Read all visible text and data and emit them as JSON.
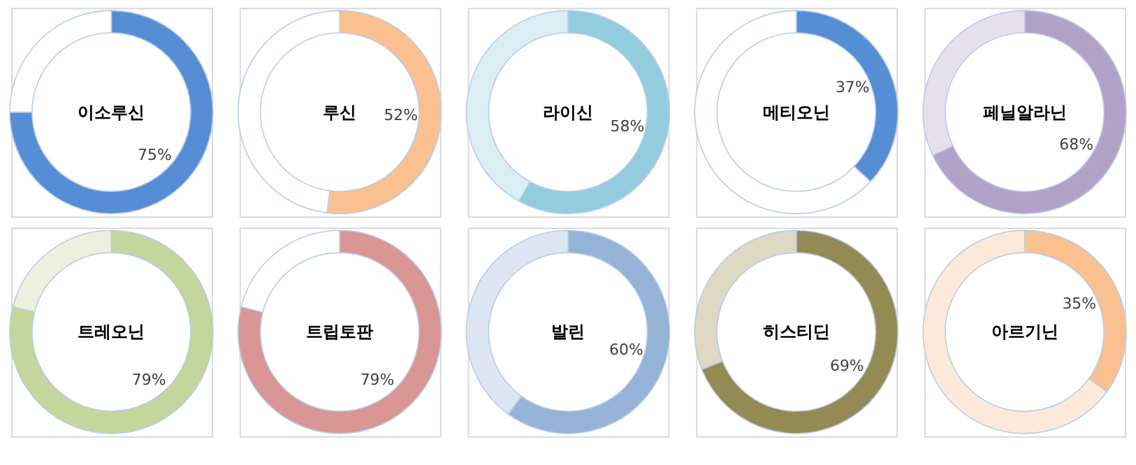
{
  "chart_data": [
    {
      "type": "donut",
      "title": "이소루신",
      "categories": [
        null,
        null
      ],
      "values": [
        75,
        25
      ],
      "colors": [
        "#558ed5",
        "#ffffff"
      ],
      "value_labels": [
        "75%",
        null
      ]
    },
    {
      "type": "donut",
      "title": "루신",
      "categories": [
        null,
        null
      ],
      "values": [
        52,
        48
      ],
      "colors": [
        "#fac090",
        "#ffffff"
      ],
      "value_labels": [
        "52%",
        null
      ]
    },
    {
      "type": "donut",
      "title": "라이신",
      "categories": [
        null,
        null
      ],
      "values": [
        58,
        42
      ],
      "colors": [
        "#93cddd",
        "#dbeef4"
      ],
      "value_labels": [
        "58%",
        null
      ]
    },
    {
      "type": "donut",
      "title": "메티오닌",
      "categories": [
        null,
        null
      ],
      "values": [
        37,
        63
      ],
      "colors": [
        "#558ed5",
        "#ffffff"
      ],
      "value_labels": [
        "37%",
        null
      ]
    },
    {
      "type": "donut",
      "title": "페닐알라닌",
      "categories": [
        null,
        null
      ],
      "values": [
        68,
        32
      ],
      "colors": [
        "#b3a2c7",
        "#e6e0ec"
      ],
      "value_labels": [
        "68%",
        null
      ]
    },
    {
      "type": "donut",
      "title": "트레오닌",
      "categories": [
        null,
        null
      ],
      "values": [
        79,
        21
      ],
      "colors": [
        "#c3d69b",
        "#ebf1de"
      ],
      "value_labels": [
        "79%",
        null
      ]
    },
    {
      "type": "donut",
      "title": "트립토판",
      "categories": [
        null,
        null
      ],
      "values": [
        79,
        21
      ],
      "colors": [
        "#d99694",
        "#ffffff"
      ],
      "value_labels": [
        "79%",
        null
      ]
    },
    {
      "type": "donut",
      "title": "발린",
      "categories": [
        null,
        null
      ],
      "values": [
        60,
        40
      ],
      "colors": [
        "#95b3d7",
        "#dce6f2"
      ],
      "value_labels": [
        "60%",
        null
      ]
    },
    {
      "type": "donut",
      "title": "히스티딘",
      "categories": [
        null,
        null
      ],
      "values": [
        69,
        31
      ],
      "colors": [
        "#948a54",
        "#ddd9c3"
      ],
      "value_labels": [
        "69%",
        null
      ]
    },
    {
      "type": "donut",
      "title": "아르기닌",
      "categories": [
        null,
        null
      ],
      "values": [
        35,
        65
      ],
      "colors": [
        "#fac090",
        "#fde9d9"
      ],
      "value_labels": [
        "35%",
        null
      ]
    }
  ]
}
